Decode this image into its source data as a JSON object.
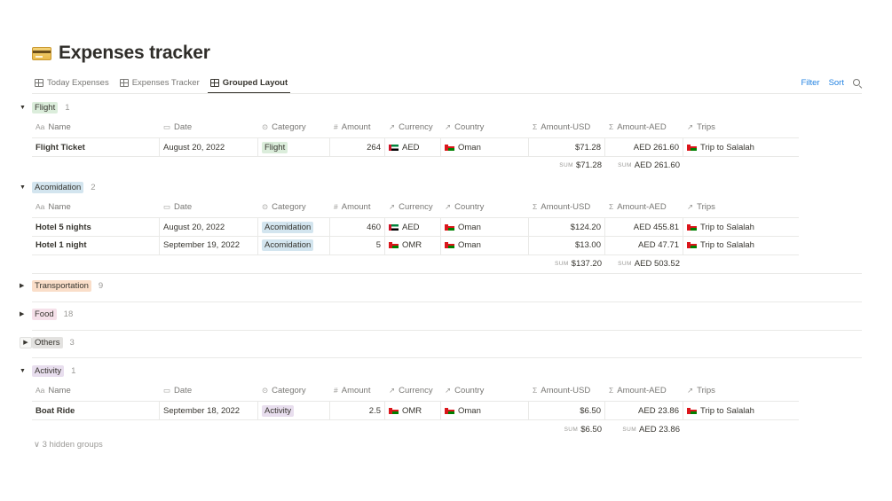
{
  "page": {
    "title": "Expenses tracker",
    "icon": "credit-card-icon"
  },
  "tabs": [
    {
      "label": "Today Expenses",
      "active": false
    },
    {
      "label": "Expenses Tracker",
      "active": false
    },
    {
      "label": "Grouped Layout",
      "active": true
    }
  ],
  "toolbar": {
    "filter": "Filter",
    "sort": "Sort",
    "search_icon": "search-icon"
  },
  "columns": [
    {
      "icon": "Aa",
      "label": "Name"
    },
    {
      "icon": "▭",
      "label": "Date"
    },
    {
      "icon": "⊙",
      "label": "Category"
    },
    {
      "icon": "#",
      "label": "Amount"
    },
    {
      "icon": "↗",
      "label": "Currency"
    },
    {
      "icon": "↗",
      "label": "Country"
    },
    {
      "icon": "Σ",
      "label": "Amount-USD"
    },
    {
      "icon": "Σ",
      "label": "Amount-AED"
    },
    {
      "icon": "↗",
      "label": "Trips"
    }
  ],
  "sum_label": "SUM",
  "groups": [
    {
      "label": "Flight",
      "count": "1",
      "color": "#dbeddb",
      "expanded": true,
      "rows": [
        {
          "name": "Flight Ticket",
          "date": "August 20, 2022",
          "category": "Flight",
          "category_color": "#dbeddb",
          "amount": "264",
          "currency": "AED",
          "currency_flag": "ae",
          "country": "Oman",
          "usd": "$71.28",
          "aed": "AED 261.60",
          "trip": "Trip to Salalah"
        }
      ],
      "sum_usd": "$71.28",
      "sum_aed": "AED 261.60"
    },
    {
      "label": "Acomidation",
      "count": "2",
      "color": "#d3e5ef",
      "expanded": true,
      "rows": [
        {
          "name": "Hotel 5 nights",
          "date": "August 20, 2022",
          "category": "Acomidation",
          "category_color": "#d3e5ef",
          "amount": "460",
          "currency": "AED",
          "currency_flag": "ae",
          "country": "Oman",
          "usd": "$124.20",
          "aed": "AED 455.81",
          "trip": "Trip to Salalah"
        },
        {
          "name": "Hotel 1 night",
          "date": "September 19, 2022",
          "category": "Acomidation",
          "category_color": "#d3e5ef",
          "amount": "5",
          "currency": "OMR",
          "currency_flag": "om",
          "country": "Oman",
          "usd": "$13.00",
          "aed": "AED 47.71",
          "trip": "Trip to Salalah"
        }
      ],
      "sum_usd": "$137.20",
      "sum_aed": "AED 503.52"
    },
    {
      "label": "Transportation",
      "count": "9",
      "color": "#fadec9",
      "expanded": false
    },
    {
      "label": "Food",
      "count": "18",
      "color": "#f5e0e9",
      "expanded": false
    },
    {
      "label": "Others",
      "count": "3",
      "color": "#e3e2e0",
      "expanded": false
    },
    {
      "label": "Activity",
      "count": "1",
      "color": "#e8deee",
      "expanded": true,
      "rows": [
        {
          "name": "Boat Ride",
          "date": "September 18, 2022",
          "category": "Activity",
          "category_color": "#e8deee",
          "amount": "2.5",
          "currency": "OMR",
          "currency_flag": "om",
          "country": "Oman",
          "usd": "$6.50",
          "aed": "AED 23.86",
          "trip": "Trip to Salalah"
        }
      ],
      "sum_usd": "$6.50",
      "sum_aed": "AED 23.86"
    }
  ],
  "hidden_groups": "3 hidden groups"
}
